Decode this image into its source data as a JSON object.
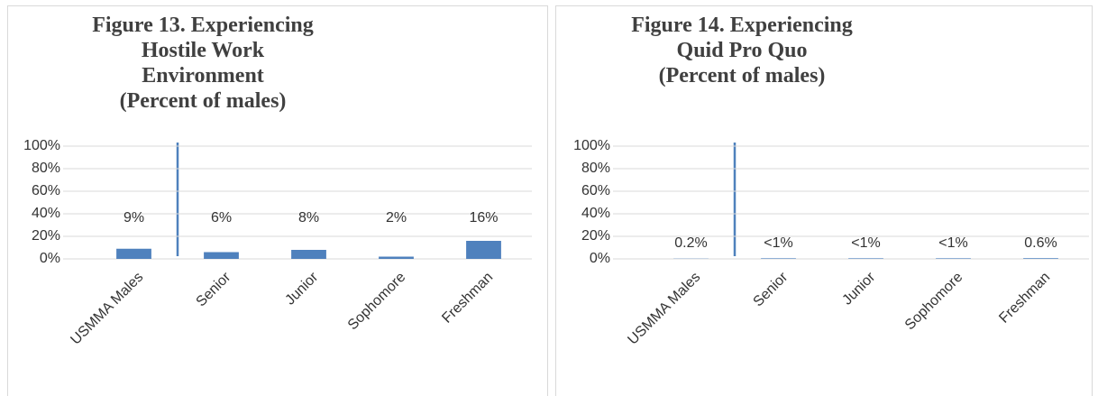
{
  "chart_data": [
    {
      "type": "bar",
      "title": "Figure 13. Experiencing Hostile Work Environment",
      "subtitle": "(Percent of males)",
      "categories": [
        "USMMA Males",
        "Senior",
        "Junior",
        "Sophomore",
        "Freshman"
      ],
      "values": [
        9,
        6,
        8,
        2,
        16
      ],
      "value_labels": [
        "9%",
        "6%",
        "8%",
        "2%",
        "16%"
      ],
      "color": "#4f81bd",
      "ylim": [
        0,
        100
      ],
      "yticks": [
        {
          "value": 0,
          "label": "0%"
        },
        {
          "value": 20,
          "label": "20%"
        },
        {
          "value": 40,
          "label": "40%"
        },
        {
          "value": 60,
          "label": "60%"
        },
        {
          "value": 80,
          "label": "80%"
        },
        {
          "value": 100,
          "label": "100%"
        }
      ],
      "grid": true
    },
    {
      "type": "bar",
      "title": "Figure 14. Experiencing Quid Pro Quo",
      "subtitle": "(Percent of males)",
      "categories": [
        "USMMA Males",
        "Senior",
        "Junior",
        "Sophomore",
        "Freshman"
      ],
      "values": [
        0.2,
        0.5,
        0.5,
        0.5,
        0.6
      ],
      "value_labels": [
        "0.2%",
        "<1%",
        "<1%",
        "<1%",
        "0.6%"
      ],
      "color": "#4f81bd",
      "ylim": [
        0,
        100
      ],
      "yticks": [
        {
          "value": 0,
          "label": "0%"
        },
        {
          "value": 20,
          "label": "20%"
        },
        {
          "value": 40,
          "label": "40%"
        },
        {
          "value": 60,
          "label": "60%"
        },
        {
          "value": 80,
          "label": "80%"
        },
        {
          "value": 100,
          "label": "100%"
        }
      ],
      "grid": true
    }
  ]
}
